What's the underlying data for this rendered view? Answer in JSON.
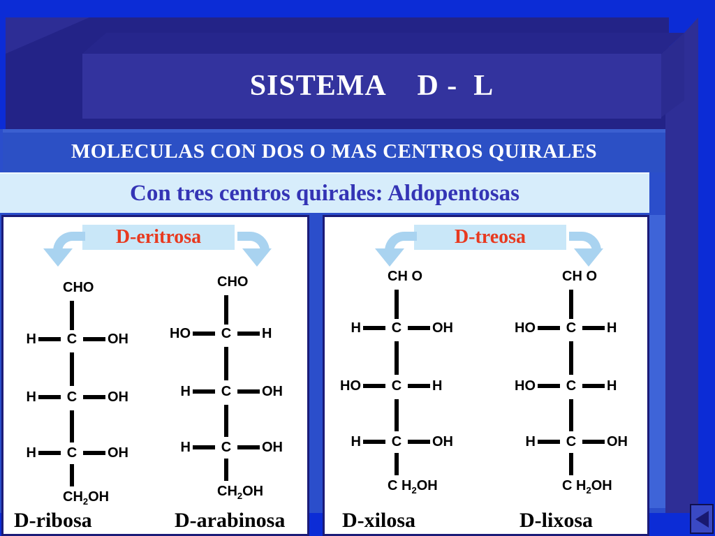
{
  "slide": {
    "title": "SISTEMA    D -  L",
    "heading": "MOLECULAS CON DOS O MAS CENTROS QUIRALES",
    "subheading": "Con tres centros quirales: Aldopentosas"
  },
  "carbon": "C",
  "panels": [
    {
      "banner": "D-eritrosa",
      "structures": [
        {
          "name": "D-ribosa",
          "top": "CHO",
          "bottom": {
            "pre": "CH",
            "sub": "2",
            "post": "OH"
          },
          "rows": [
            {
              "left": "H",
              "right": "OH"
            },
            {
              "left": "H",
              "right": "OH"
            },
            {
              "left": "H",
              "right": "OH"
            }
          ]
        },
        {
          "name": "D-arabinosa",
          "top": "CHO",
          "bottom": {
            "pre": "CH",
            "sub": "2",
            "post": "OH"
          },
          "rows": [
            {
              "left": "HO",
              "right": "H"
            },
            {
              "left": "H",
              "right": "OH"
            },
            {
              "left": "H",
              "right": "OH"
            }
          ]
        }
      ]
    },
    {
      "banner": "D-treosa",
      "structures": [
        {
          "name": "D-xilosa",
          "top": "CH O",
          "bottom": {
            "pre": "C H",
            "sub": "2",
            "post": "OH"
          },
          "rows": [
            {
              "left": "H",
              "right": "OH"
            },
            {
              "left": "HO",
              "right": "H"
            },
            {
              "left": "H",
              "right": "OH"
            }
          ]
        },
        {
          "name": "D-lixosa",
          "top": "CH O",
          "bottom": {
            "pre": "C H",
            "sub": "2",
            "post": "OH"
          },
          "rows": [
            {
              "left": "HO",
              "right": "H"
            },
            {
              "left": "HO",
              "right": "H"
            },
            {
              "left": "H",
              "right": "OH"
            }
          ]
        }
      ]
    }
  ],
  "nav": {
    "back_icon": "left-triangle"
  },
  "colors": {
    "background": "#0c2cd6",
    "box_face": "#232387",
    "title_face": "#33339e",
    "heading_bar": "#2c50c5",
    "sub_bar_bg": "#d7edfb",
    "sub_bar_text": "#3434b5",
    "panel_border": "#1b1b78",
    "banner_bg": "#c9e7f8",
    "banner_text": "#e8391f",
    "arrow_blue": "#a9d3f0",
    "button_face": "#3a49c4",
    "button_border": "#10104e"
  }
}
